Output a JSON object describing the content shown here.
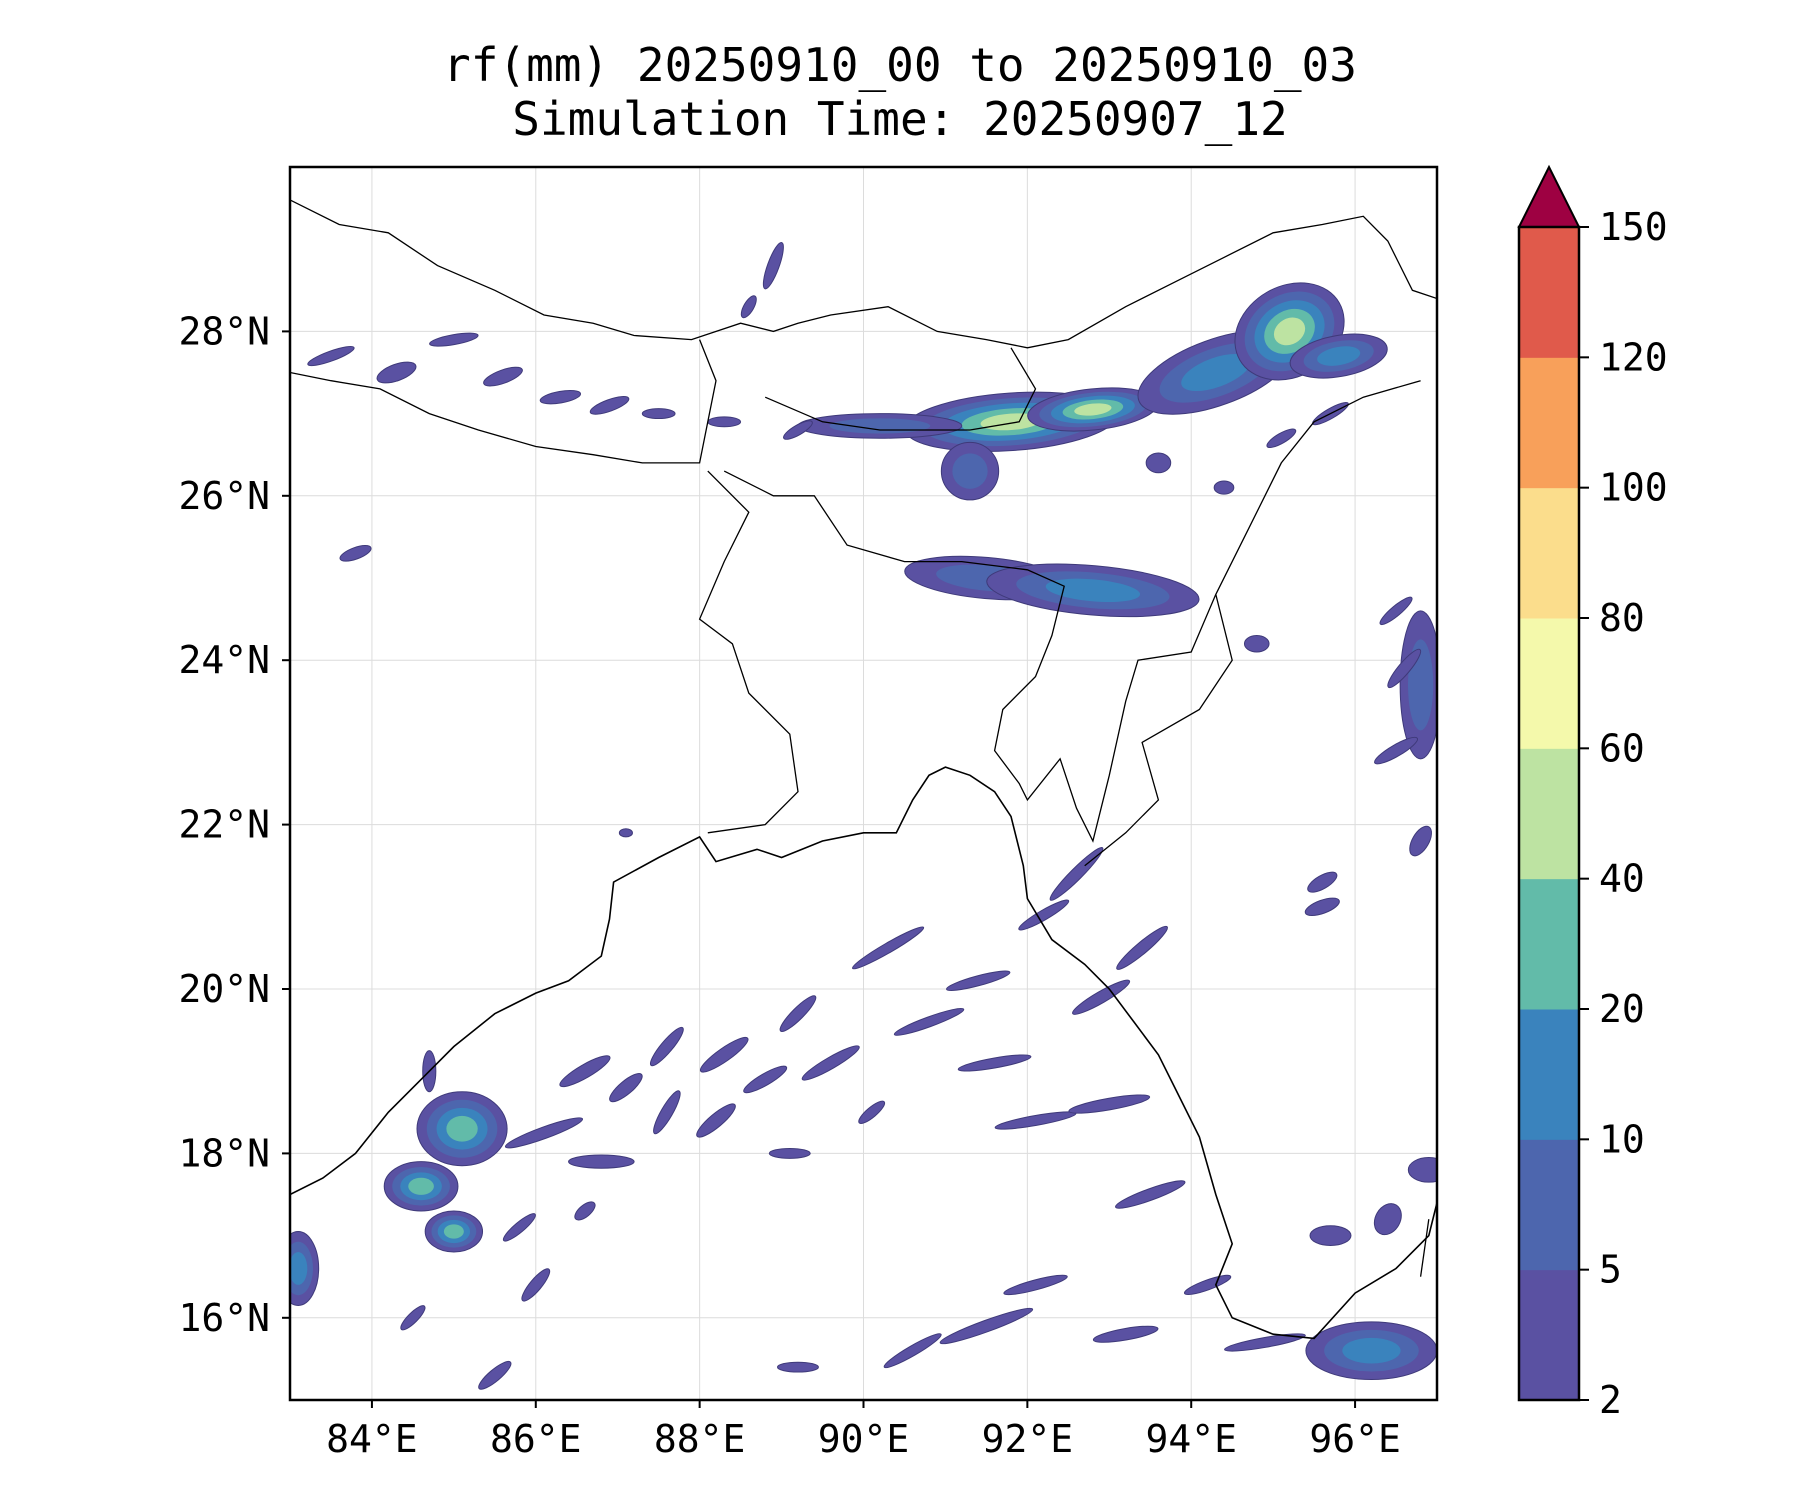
{
  "title": {
    "line1": "rf(mm) 20250910_00 to 20250910_03",
    "line2": "Simulation Time: 20250907_12"
  },
  "map": {
    "lon_range": [
      83,
      97
    ],
    "lat_range": [
      15,
      30
    ],
    "lon_ticks": [
      84,
      86,
      88,
      90,
      92,
      94,
      96
    ],
    "lon_tick_labels": [
      "84°E",
      "86°E",
      "88°E",
      "90°E",
      "92°E",
      "94°E",
      "96°E"
    ],
    "lat_ticks": [
      16,
      18,
      20,
      22,
      24,
      26,
      28
    ],
    "lat_tick_labels": [
      "16°N",
      "18°N",
      "20°N",
      "22°N",
      "24°N",
      "26°N",
      "28°N"
    ],
    "grid": true
  },
  "colorbar": {
    "levels": [
      2,
      5,
      10,
      20,
      40,
      60,
      80,
      100,
      120,
      150
    ],
    "level_labels": [
      "2",
      "5",
      "10",
      "20",
      "40",
      "60",
      "80",
      "100",
      "120",
      "150"
    ],
    "colors": [
      "#5a51a2",
      "#4d66ae",
      "#3a83bd",
      "#62bba9",
      "#bde3a2",
      "#f4f9ab",
      "#fbdd8c",
      "#f8a05a",
      "#e05a4b",
      "#d43d50"
    ],
    "extend_color": "#9e0142",
    "extend": "max"
  },
  "rain_fields": [
    {
      "lon": 91.8,
      "lat": 26.9,
      "rx": 1.3,
      "ry": 0.35,
      "rot": -4,
      "levels": [
        2,
        5,
        10,
        20,
        40
      ]
    },
    {
      "lon": 92.8,
      "lat": 27.05,
      "rx": 0.8,
      "ry": 0.25,
      "rot": -6,
      "levels": [
        2,
        5,
        10,
        20,
        40
      ]
    },
    {
      "lon": 90.2,
      "lat": 26.85,
      "rx": 1.0,
      "ry": 0.15,
      "rot": 0,
      "levels": [
        2,
        5
      ]
    },
    {
      "lon": 94.3,
      "lat": 27.5,
      "rx": 1.0,
      "ry": 0.4,
      "rot": -20,
      "levels": [
        2,
        5,
        10
      ]
    },
    {
      "lon": 95.2,
      "lat": 28.0,
      "rx": 0.7,
      "ry": 0.55,
      "rot": -30,
      "levels": [
        2,
        5,
        10,
        20,
        40
      ]
    },
    {
      "lon": 95.8,
      "lat": 27.7,
      "rx": 0.6,
      "ry": 0.25,
      "rot": -10,
      "levels": [
        2,
        5,
        10
      ]
    },
    {
      "lon": 91.3,
      "lat": 26.3,
      "rx": 0.35,
      "ry": 0.35,
      "rot": 0,
      "levels": [
        2,
        5
      ]
    },
    {
      "lon": 91.5,
      "lat": 25.0,
      "rx": 1.0,
      "ry": 0.25,
      "rot": 5,
      "levels": [
        2,
        5
      ]
    },
    {
      "lon": 92.8,
      "lat": 24.85,
      "rx": 1.3,
      "ry": 0.3,
      "rot": 5,
      "levels": [
        2,
        5,
        10
      ]
    },
    {
      "lon": 85.1,
      "lat": 18.3,
      "rx": 0.55,
      "ry": 0.45,
      "rot": 0,
      "levels": [
        2,
        5,
        10,
        20
      ]
    },
    {
      "lon": 84.6,
      "lat": 17.6,
      "rx": 0.45,
      "ry": 0.3,
      "rot": 0,
      "levels": [
        2,
        5,
        10,
        20
      ]
    },
    {
      "lon": 85.0,
      "lat": 17.05,
      "rx": 0.35,
      "ry": 0.25,
      "rot": 0,
      "levels": [
        2,
        5,
        10,
        20
      ]
    },
    {
      "lon": 83.1,
      "lat": 16.6,
      "rx": 0.25,
      "ry": 0.45,
      "rot": 0,
      "levels": [
        2,
        5,
        10
      ]
    },
    {
      "lon": 96.2,
      "lat": 15.6,
      "rx": 0.8,
      "ry": 0.35,
      "rot": 0,
      "levels": [
        2,
        5,
        10
      ]
    },
    {
      "lon": 96.8,
      "lat": 23.7,
      "rx": 0.25,
      "ry": 0.9,
      "rot": 0,
      "levels": [
        2,
        5
      ]
    }
  ],
  "rain_streaks": [
    [
      86.1,
      18.25,
      0.5,
      0.07,
      -20
    ],
    [
      86.8,
      17.9,
      0.4,
      0.08,
      0
    ],
    [
      86.6,
      19.0,
      0.35,
      0.08,
      -30
    ],
    [
      87.1,
      18.8,
      0.25,
      0.08,
      -40
    ],
    [
      87.6,
      19.3,
      0.3,
      0.07,
      -50
    ],
    [
      88.3,
      19.2,
      0.35,
      0.08,
      -35
    ],
    [
      88.8,
      18.9,
      0.3,
      0.07,
      -30
    ],
    [
      88.2,
      18.4,
      0.3,
      0.08,
      -40
    ],
    [
      87.6,
      18.5,
      0.3,
      0.07,
      -60
    ],
    [
      89.6,
      19.1,
      0.4,
      0.07,
      -30
    ],
    [
      89.2,
      19.7,
      0.3,
      0.07,
      -45
    ],
    [
      90.3,
      20.5,
      0.5,
      0.06,
      -30
    ],
    [
      90.8,
      19.6,
      0.45,
      0.06,
      -20
    ],
    [
      91.4,
      20.1,
      0.4,
      0.06,
      -15
    ],
    [
      91.6,
      19.1,
      0.45,
      0.06,
      -10
    ],
    [
      92.1,
      18.4,
      0.5,
      0.06,
      -10
    ],
    [
      93.0,
      18.6,
      0.5,
      0.07,
      -10
    ],
    [
      93.5,
      17.5,
      0.45,
      0.07,
      -20
    ],
    [
      92.9,
      19.9,
      0.4,
      0.07,
      -30
    ],
    [
      93.4,
      20.5,
      0.4,
      0.07,
      -40
    ],
    [
      92.6,
      21.4,
      0.45,
      0.07,
      -45
    ],
    [
      92.2,
      20.9,
      0.35,
      0.06,
      -30
    ],
    [
      91.5,
      15.9,
      0.6,
      0.07,
      -20
    ],
    [
      92.1,
      16.4,
      0.4,
      0.06,
      -15
    ],
    [
      93.2,
      15.8,
      0.4,
      0.07,
      -10
    ],
    [
      94.2,
      16.4,
      0.3,
      0.06,
      -20
    ],
    [
      94.9,
      15.7,
      0.5,
      0.06,
      -10
    ],
    [
      90.6,
      15.6,
      0.4,
      0.06,
      -30
    ],
    [
      89.2,
      15.4,
      0.25,
      0.06,
      0
    ],
    [
      85.5,
      15.3,
      0.25,
      0.07,
      -40
    ],
    [
      86.0,
      16.4,
      0.25,
      0.07,
      -50
    ],
    [
      85.8,
      17.1,
      0.25,
      0.06,
      -40
    ],
    [
      84.5,
      16.0,
      0.2,
      0.06,
      -45
    ],
    [
      89.1,
      18.0,
      0.25,
      0.06,
      0
    ],
    [
      90.1,
      18.5,
      0.2,
      0.06,
      -40
    ],
    [
      95.7,
      17.0,
      0.25,
      0.12,
      0
    ],
    [
      96.4,
      17.2,
      0.2,
      0.15,
      -60
    ],
    [
      96.9,
      17.8,
      0.25,
      0.15,
      0
    ],
    [
      96.5,
      22.9,
      0.3,
      0.07,
      -30
    ],
    [
      96.6,
      23.9,
      0.3,
      0.07,
      -50
    ],
    [
      96.5,
      24.6,
      0.25,
      0.06,
      -40
    ],
    [
      95.6,
      21.0,
      0.22,
      0.08,
      -20
    ],
    [
      96.8,
      21.8,
      0.2,
      0.1,
      -60
    ],
    [
      94.8,
      24.2,
      0.15,
      0.1,
      0
    ],
    [
      93.6,
      26.4,
      0.15,
      0.12,
      0
    ],
    [
      94.4,
      26.1,
      0.12,
      0.08,
      0
    ],
    [
      88.6,
      28.3,
      0.15,
      0.06,
      -60
    ],
    [
      88.9,
      28.8,
      0.3,
      0.07,
      -70
    ],
    [
      83.8,
      25.3,
      0.2,
      0.07,
      -20
    ],
    [
      86.9,
      27.1,
      0.25,
      0.07,
      -20
    ],
    [
      86.3,
      27.2,
      0.25,
      0.07,
      -10
    ],
    [
      87.5,
      27.0,
      0.2,
      0.06,
      0
    ],
    [
      88.3,
      26.9,
      0.2,
      0.06,
      0
    ],
    [
      84.3,
      27.5,
      0.25,
      0.1,
      -20
    ],
    [
      85.6,
      27.45,
      0.25,
      0.08,
      -20
    ],
    [
      83.5,
      27.7,
      0.3,
      0.06,
      -20
    ],
    [
      85.0,
      27.9,
      0.3,
      0.06,
      -10
    ],
    [
      89.2,
      26.8,
      0.2,
      0.06,
      -30
    ],
    [
      95.1,
      26.7,
      0.2,
      0.06,
      -30
    ],
    [
      95.7,
      27.0,
      0.25,
      0.06,
      -30
    ],
    [
      95.6,
      21.3,
      0.2,
      0.08,
      -30
    ],
    [
      87.1,
      21.9,
      0.08,
      0.05,
      0
    ],
    [
      84.7,
      19.0,
      0.08,
      0.25,
      0
    ],
    [
      86.6,
      17.3,
      0.15,
      0.07,
      -40
    ]
  ],
  "coastlines": [
    [
      [
        83.0,
        17.5
      ],
      [
        83.4,
        17.7
      ],
      [
        83.8,
        18.0
      ],
      [
        84.2,
        18.5
      ],
      [
        84.6,
        18.9
      ],
      [
        85.0,
        19.3
      ],
      [
        85.5,
        19.7
      ],
      [
        86.0,
        19.95
      ],
      [
        86.4,
        20.1
      ],
      [
        86.8,
        20.4
      ],
      [
        86.9,
        20.85
      ],
      [
        86.95,
        21.3
      ],
      [
        87.5,
        21.6
      ],
      [
        88.0,
        21.85
      ],
      [
        88.2,
        21.55
      ],
      [
        88.7,
        21.7
      ],
      [
        89.0,
        21.6
      ],
      [
        89.5,
        21.8
      ],
      [
        90.0,
        21.9
      ],
      [
        90.4,
        21.9
      ],
      [
        90.6,
        22.3
      ],
      [
        90.8,
        22.6
      ],
      [
        91.0,
        22.7
      ],
      [
        91.3,
        22.6
      ],
      [
        91.6,
        22.4
      ],
      [
        91.8,
        22.1
      ],
      [
        91.95,
        21.5
      ],
      [
        92.0,
        21.1
      ],
      [
        92.3,
        20.6
      ],
      [
        92.7,
        20.3
      ],
      [
        93.0,
        20.0
      ],
      [
        93.3,
        19.6
      ],
      [
        93.6,
        19.2
      ],
      [
        93.8,
        18.8
      ],
      [
        94.1,
        18.2
      ],
      [
        94.3,
        17.5
      ],
      [
        94.5,
        16.9
      ],
      [
        94.3,
        16.4
      ],
      [
        94.5,
        16.0
      ],
      [
        95.0,
        15.8
      ],
      [
        95.5,
        15.75
      ],
      [
        96.0,
        16.3
      ],
      [
        96.5,
        16.6
      ],
      [
        96.9,
        17.0
      ],
      [
        97.0,
        17.4
      ]
    ]
  ],
  "borders": [
    [
      [
        83.0,
        29.6
      ],
      [
        83.6,
        29.3
      ],
      [
        84.2,
        29.2
      ],
      [
        84.8,
        28.8
      ],
      [
        85.5,
        28.5
      ],
      [
        86.1,
        28.2
      ],
      [
        86.7,
        28.1
      ],
      [
        87.2,
        27.95
      ],
      [
        87.9,
        27.9
      ],
      [
        88.5,
        28.1
      ],
      [
        88.9,
        28.0
      ],
      [
        89.2,
        28.1
      ],
      [
        89.6,
        28.2
      ],
      [
        90.3,
        28.3
      ],
      [
        90.9,
        28.0
      ],
      [
        91.5,
        27.9
      ],
      [
        92.0,
        27.8
      ],
      [
        92.5,
        27.9
      ],
      [
        93.2,
        28.3
      ],
      [
        93.8,
        28.6
      ],
      [
        94.4,
        28.9
      ],
      [
        95.0,
        29.2
      ],
      [
        95.6,
        29.3
      ],
      [
        96.1,
        29.4
      ],
      [
        96.4,
        29.1
      ],
      [
        96.7,
        28.5
      ],
      [
        97.0,
        28.4
      ]
    ],
    [
      [
        83.0,
        27.5
      ],
      [
        83.5,
        27.4
      ],
      [
        84.1,
        27.3
      ],
      [
        84.7,
        27.0
      ],
      [
        85.3,
        26.8
      ],
      [
        86.0,
        26.6
      ],
      [
        86.7,
        26.5
      ],
      [
        87.3,
        26.4
      ],
      [
        88.0,
        26.4
      ],
      [
        88.1,
        26.9
      ],
      [
        88.2,
        27.4
      ],
      [
        88.0,
        27.9
      ]
    ],
    [
      [
        88.8,
        27.2
      ],
      [
        89.5,
        26.9
      ],
      [
        90.2,
        26.8
      ],
      [
        90.8,
        26.8
      ],
      [
        91.3,
        26.8
      ],
      [
        91.9,
        26.9
      ],
      [
        92.1,
        27.3
      ],
      [
        91.8,
        27.8
      ]
    ],
    [
      [
        88.3,
        26.3
      ],
      [
        88.9,
        26.0
      ],
      [
        89.4,
        26.0
      ],
      [
        89.8,
        25.4
      ],
      [
        90.5,
        25.2
      ],
      [
        91.2,
        25.2
      ],
      [
        92.0,
        25.1
      ],
      [
        92.45,
        24.9
      ],
      [
        92.3,
        24.3
      ],
      [
        92.1,
        23.8
      ],
      [
        91.7,
        23.4
      ],
      [
        91.6,
        22.9
      ],
      [
        91.9,
        22.5
      ],
      [
        92.0,
        22.3
      ],
      [
        92.4,
        22.8
      ],
      [
        92.6,
        22.2
      ],
      [
        92.8,
        21.8
      ],
      [
        93.0,
        22.6
      ],
      [
        93.2,
        23.5
      ],
      [
        93.35,
        24.0
      ],
      [
        94.0,
        24.1
      ],
      [
        94.3,
        24.8
      ],
      [
        94.7,
        25.6
      ],
      [
        95.1,
        26.4
      ],
      [
        95.5,
        26.9
      ],
      [
        96.1,
        27.2
      ],
      [
        96.8,
        27.4
      ]
    ],
    [
      [
        88.1,
        21.9
      ],
      [
        88.8,
        22.0
      ],
      [
        89.2,
        22.4
      ],
      [
        89.1,
        23.1
      ],
      [
        88.6,
        23.6
      ],
      [
        88.4,
        24.2
      ],
      [
        88.0,
        24.5
      ],
      [
        88.3,
        25.2
      ],
      [
        88.6,
        25.8
      ],
      [
        88.1,
        26.3
      ]
    ],
    [
      [
        94.3,
        24.8
      ],
      [
        94.5,
        24.0
      ],
      [
        94.1,
        23.4
      ],
      [
        93.4,
        23.0
      ],
      [
        93.6,
        22.3
      ],
      [
        93.2,
        21.9
      ],
      [
        92.7,
        21.5
      ]
    ],
    [
      [
        96.9,
        17.2
      ],
      [
        96.8,
        16.5
      ]
    ]
  ]
}
